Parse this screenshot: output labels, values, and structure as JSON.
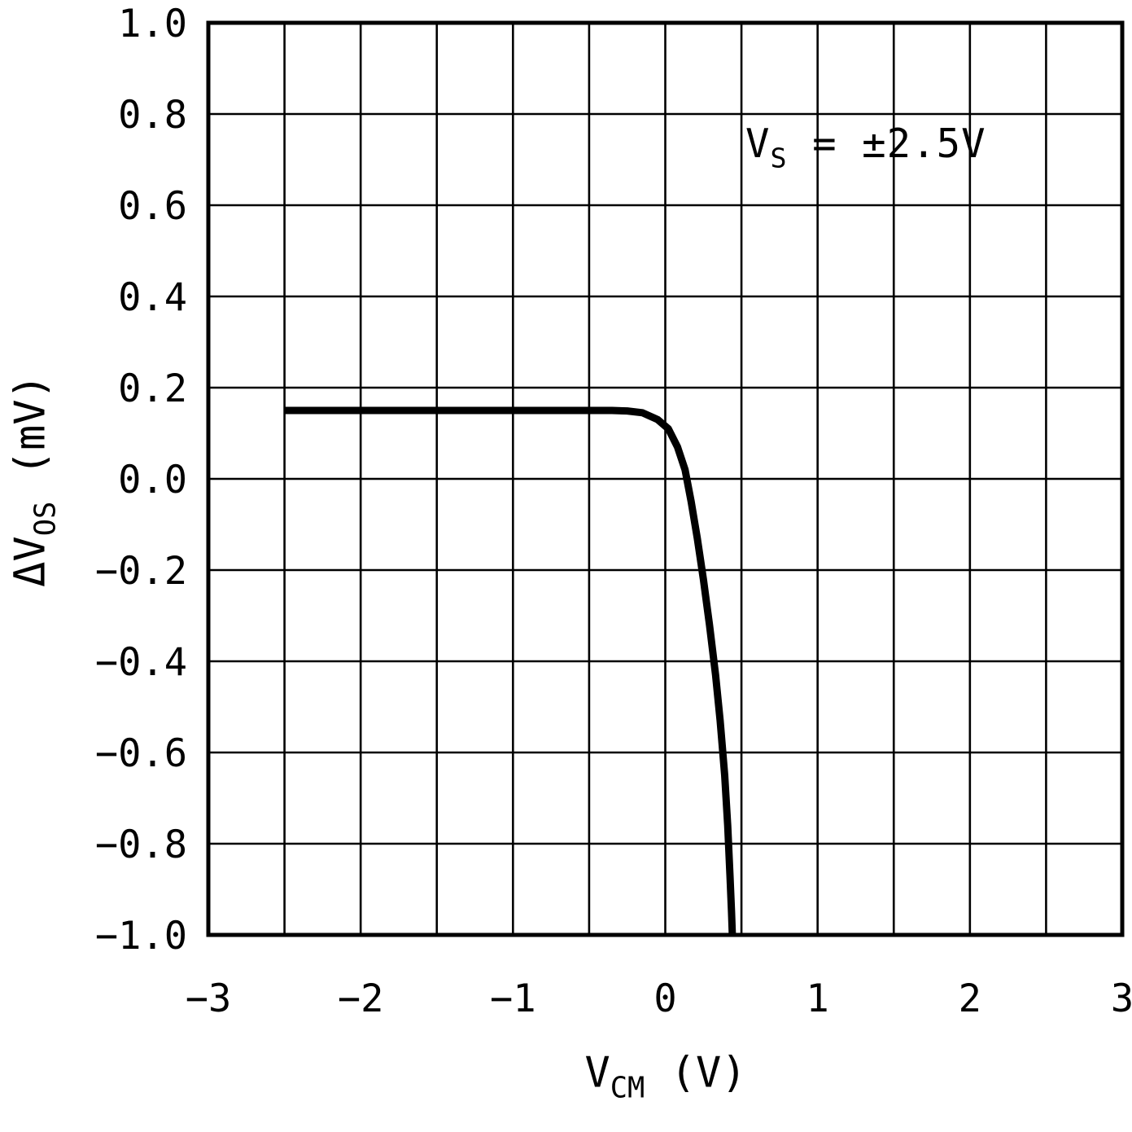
{
  "chart_data": {
    "type": "line",
    "title": "",
    "xlabel": {
      "prefix": "V",
      "sub": "CM",
      "rest": " (V)"
    },
    "ylabel": {
      "prefix": "ΔV",
      "sub": "OS",
      "rest": " (mV)"
    },
    "annotation": {
      "prefix": "V",
      "sub": "S",
      "rest": " = ±2.5V"
    },
    "xlim": [
      -3,
      3
    ],
    "ylim": [
      -1,
      1
    ],
    "x_grid_step": 0.5,
    "y_grid_step": 0.2,
    "grid": true,
    "legend": "none",
    "xticks": [
      -3,
      -2,
      -1,
      0,
      1,
      2,
      3
    ],
    "xtick_labels": [
      "−3",
      "−2",
      "−1",
      "0",
      "1",
      "2",
      "3"
    ],
    "yticks": [
      1.0,
      0.8,
      0.6,
      0.4,
      0.2,
      0.0,
      -0.2,
      -0.4,
      -0.6,
      -0.8,
      -1.0
    ],
    "ytick_labels": [
      "1.0",
      "0.8",
      "0.6",
      "0.4",
      "0.2",
      "0.0",
      "−0.2",
      "−0.4",
      "−0.6",
      "−0.8",
      "−1.0"
    ],
    "series": [
      {
        "name": "delta-vos-vs-vcm",
        "points": [
          [
            -2.5,
            0.15
          ],
          [
            -2.0,
            0.15
          ],
          [
            -1.5,
            0.15
          ],
          [
            -1.0,
            0.15
          ],
          [
            -0.7,
            0.15
          ],
          [
            -0.5,
            0.15
          ],
          [
            -0.35,
            0.15
          ],
          [
            -0.25,
            0.149
          ],
          [
            -0.15,
            0.145
          ],
          [
            -0.05,
            0.13
          ],
          [
            0.02,
            0.11
          ],
          [
            0.08,
            0.07
          ],
          [
            0.13,
            0.02
          ],
          [
            0.17,
            -0.05
          ],
          [
            0.21,
            -0.13
          ],
          [
            0.25,
            -0.22
          ],
          [
            0.29,
            -0.32
          ],
          [
            0.33,
            -0.43
          ],
          [
            0.36,
            -0.53
          ],
          [
            0.39,
            -0.65
          ],
          [
            0.41,
            -0.76
          ],
          [
            0.425,
            -0.87
          ],
          [
            0.435,
            -0.95
          ],
          [
            0.44,
            -1.0
          ]
        ]
      }
    ]
  }
}
